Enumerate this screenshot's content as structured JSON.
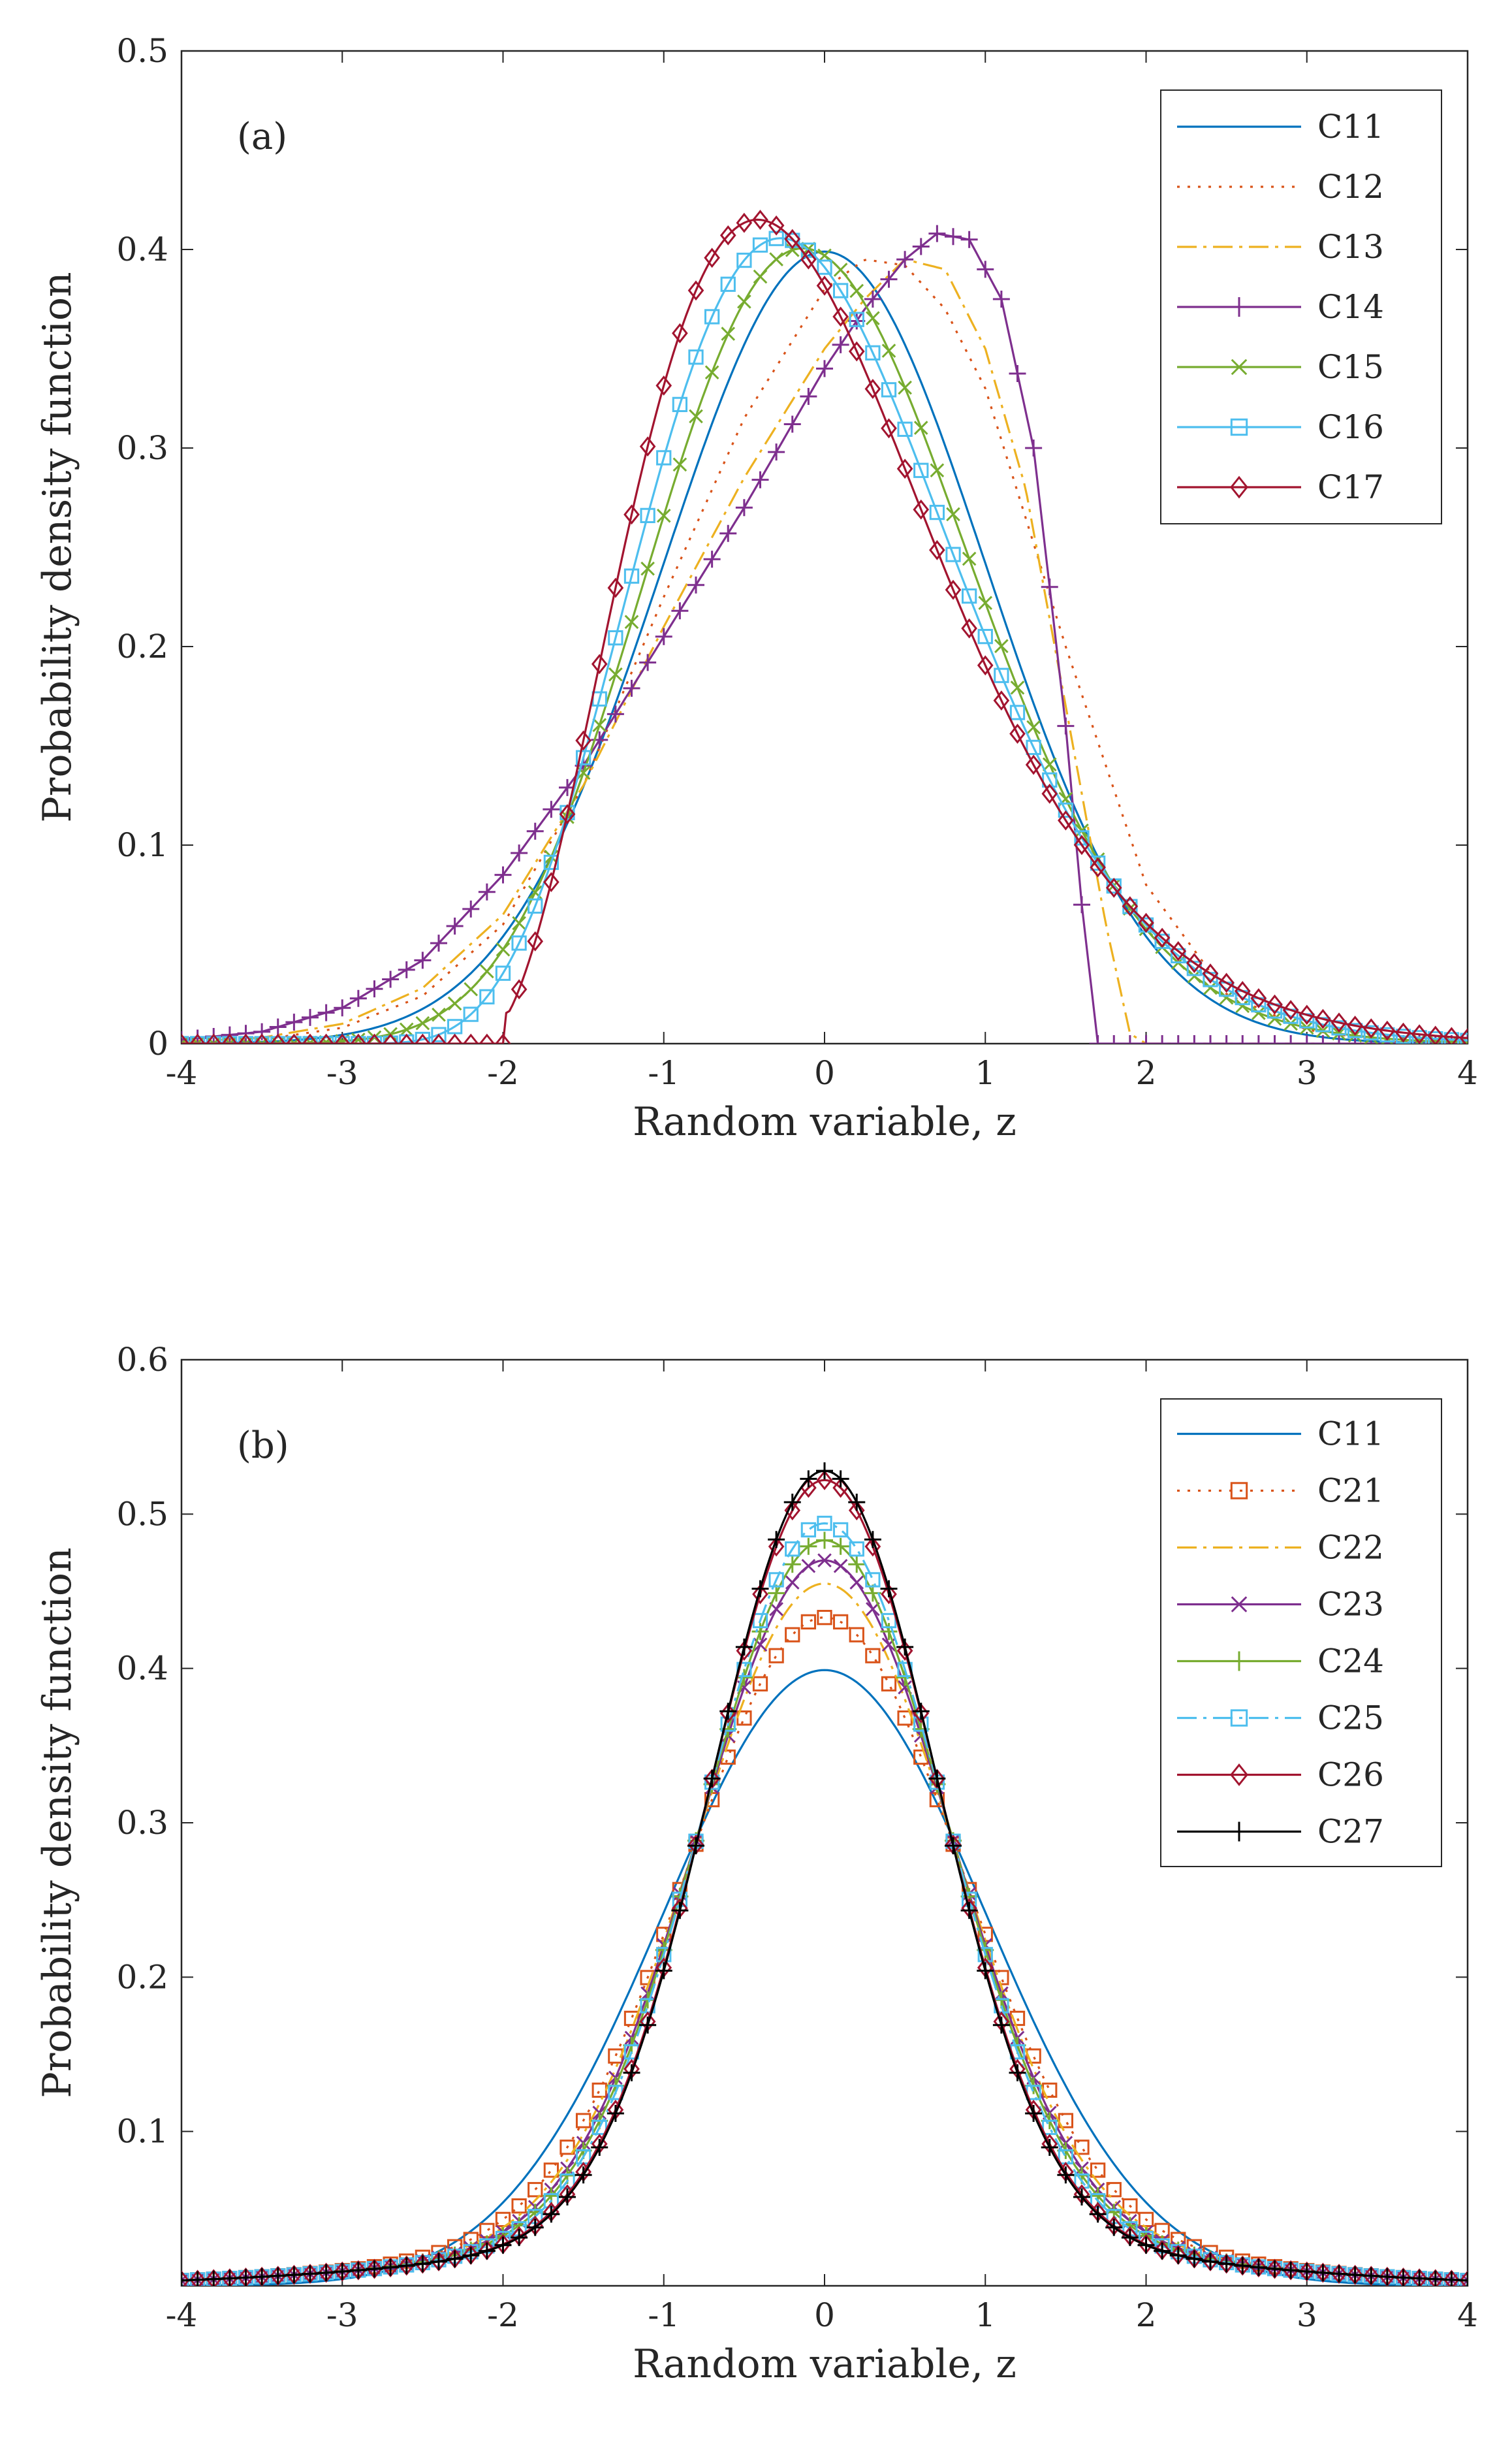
{
  "chart_data": [
    {
      "type": "line",
      "panel_label": "(a)",
      "xlabel": "Random variable, z",
      "ylabel": "Probability density function",
      "xlim": [
        -4,
        4
      ],
      "ylim": [
        0,
        0.5
      ],
      "xticks": [
        -4,
        -3,
        -2,
        -1,
        0,
        1,
        2,
        3,
        4
      ],
      "xtick_labels": [
        "-4",
        "-3",
        "-2",
        "-1",
        "0",
        "1",
        "2",
        "3",
        "4"
      ],
      "yticks": [
        0,
        0.1,
        0.2,
        0.3,
        0.4,
        0.5
      ],
      "ytick_labels": [
        "0",
        "0.1",
        "0.2",
        "0.3",
        "0.4",
        "0.5"
      ],
      "legend_position": "top-right",
      "series": [
        {
          "name": "C11",
          "color": "#0072BD",
          "dash": "solid",
          "marker": "none",
          "dist": "normal",
          "note": "standard normal density"
        },
        {
          "name": "C12",
          "color": "#D95319",
          "dash": "dotted",
          "marker": "none",
          "dist": "skew",
          "skew": -0.25,
          "x": [
            -4,
            -3.5,
            -3,
            -2.5,
            -2,
            -1.5,
            -1,
            -0.5,
            0,
            0.25,
            0.5,
            0.75,
            1,
            1.5,
            2,
            2.5,
            3,
            3.5,
            4
          ],
          "values": [
            0,
            0.002,
            0.008,
            0.024,
            0.06,
            0.13,
            0.225,
            0.315,
            0.38,
            0.395,
            0.392,
            0.37,
            0.33,
            0.2,
            0.08,
            0.025,
            0.007,
            0.001,
            0
          ]
        },
        {
          "name": "C13",
          "color": "#EDB120",
          "dash": "dashdot",
          "marker": "none",
          "dist": "skew",
          "skew": -0.5,
          "x": [
            -4,
            -3.5,
            -3,
            -2.5,
            -2,
            -1.5,
            -1,
            -0.5,
            0,
            0.25,
            0.5,
            0.75,
            1,
            1.25,
            1.5,
            1.75,
            1.9,
            2,
            4
          ],
          "values": [
            0.001,
            0.003,
            0.01,
            0.028,
            0.065,
            0.13,
            0.21,
            0.285,
            0.35,
            0.375,
            0.395,
            0.39,
            0.35,
            0.28,
            0.17,
            0.06,
            0.005,
            0,
            0
          ]
        },
        {
          "name": "C14",
          "color": "#7E2F8E",
          "dash": "solid",
          "marker": "plus",
          "dist": "skew",
          "skew": -0.75,
          "x": [
            -4,
            -3.5,
            -3,
            -2.5,
            -2,
            -1.5,
            -1,
            -0.5,
            0,
            0.25,
            0.5,
            0.7,
            0.9,
            1.1,
            1.3,
            1.5,
            1.6,
            1.7,
            4
          ],
          "values": [
            0.002,
            0.006,
            0.018,
            0.042,
            0.085,
            0.14,
            0.205,
            0.27,
            0.34,
            0.37,
            0.395,
            0.408,
            0.405,
            0.375,
            0.3,
            0.16,
            0.07,
            0,
            0
          ]
        },
        {
          "name": "C15",
          "color": "#77AC30",
          "dash": "solid",
          "marker": "x",
          "dist": "skew",
          "skew": 0.25
        },
        {
          "name": "C16",
          "color": "#4DBEEE",
          "dash": "solid",
          "marker": "square",
          "dist": "skew",
          "skew": 0.5
        },
        {
          "name": "C17",
          "color": "#A2142F",
          "dash": "solid",
          "marker": "diamond",
          "dist": "skew",
          "skew": 0.75
        }
      ]
    },
    {
      "type": "line",
      "panel_label": "(b)",
      "xlabel": "Random variable, z",
      "ylabel": "Probability density function",
      "xlim": [
        -4,
        4
      ],
      "ylim": [
        0,
        0.6
      ],
      "xticks": [
        -4,
        -3,
        -2,
        -1,
        0,
        1,
        2,
        3,
        4
      ],
      "xtick_labels": [
        "-4",
        "-3",
        "-2",
        "-1",
        "0",
        "1",
        "2",
        "3",
        "4"
      ],
      "yticks": [
        0.1,
        0.2,
        0.3,
        0.4,
        0.5,
        0.6
      ],
      "ytick_labels": [
        "0.1",
        "0.2",
        "0.3",
        "0.4",
        "0.5",
        "0.6"
      ],
      "legend_position": "top-right",
      "series": [
        {
          "name": "C11",
          "color": "#0072BD",
          "dash": "solid",
          "marker": "none",
          "peak": 0.399
        },
        {
          "name": "C21",
          "color": "#D95319",
          "dash": "dotted",
          "marker": "square",
          "peak": 0.433
        },
        {
          "name": "C22",
          "color": "#EDB120",
          "dash": "dashdot",
          "marker": "none",
          "peak": 0.455
        },
        {
          "name": "C23",
          "color": "#7E2F8E",
          "dash": "solid",
          "marker": "x",
          "peak": 0.47
        },
        {
          "name": "C24",
          "color": "#77AC30",
          "dash": "solid",
          "marker": "plus",
          "peak": 0.483
        },
        {
          "name": "C25",
          "color": "#4DBEEE",
          "dash": "dashdot",
          "marker": "square",
          "peak": 0.494
        },
        {
          "name": "C26",
          "color": "#A2142F",
          "dash": "solid",
          "marker": "diamond",
          "peak": 0.522
        },
        {
          "name": "C27",
          "color": "#000000",
          "dash": "solid",
          "marker": "plus",
          "peak": 0.528
        }
      ]
    }
  ]
}
